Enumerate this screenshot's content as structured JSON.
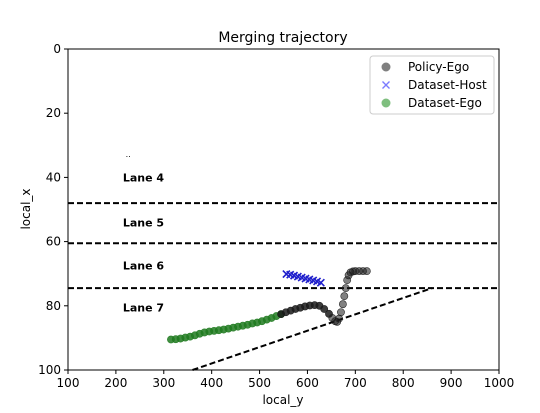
{
  "chart_data": {
    "type": "scatter",
    "title": "Merging trajectory",
    "xlabel": "local_y",
    "ylabel": "local_x",
    "xlim": [
      100,
      1000
    ],
    "ylim": [
      0,
      100
    ],
    "y_inverted": true,
    "xticks": [
      100,
      200,
      300,
      400,
      500,
      600,
      700,
      800,
      900,
      1000
    ],
    "yticks": [
      0,
      20,
      40,
      60,
      80,
      100
    ],
    "grid": false,
    "legend_position": "top-right",
    "legend": [
      {
        "label": "Policy-Ego",
        "marker": "circle",
        "color": "#808080"
      },
      {
        "label": "Dataset-Host",
        "marker": "x",
        "color": "#7b7bff"
      },
      {
        "label": "Dataset-Ego",
        "marker": "circle",
        "color": "#7fbf7f"
      }
    ],
    "lane_lines": [
      {
        "y": 48
      },
      {
        "y": 60.5
      },
      {
        "y": 74.5
      }
    ],
    "merge_line": {
      "points": [
        [
          360,
          100
        ],
        [
          860,
          74.5
        ]
      ]
    },
    "lane_labels": [
      {
        "text": "Lane 4",
        "x": 200,
        "y": 40
      },
      {
        "text": "Lane 5",
        "x": 200,
        "y": 54
      },
      {
        "text": "Lane 6",
        "x": 200,
        "y": 67.5
      },
      {
        "text": "Lane 7",
        "x": 200,
        "y": 80.5
      }
    ],
    "stray_mark": {
      "text": "..",
      "x": 210,
      "y": 33
    },
    "series": [
      {
        "name": "Dataset-Ego",
        "marker": "circle",
        "color": "#1f7a1f",
        "x": [
          315,
          325,
          335,
          345,
          355,
          365,
          375,
          385,
          395,
          405,
          415,
          425,
          435,
          445,
          455,
          465,
          475,
          485,
          495,
          505,
          515,
          525,
          535,
          545
        ],
        "y": [
          90.5,
          90.4,
          90.2,
          89.9,
          89.6,
          89.2,
          88.7,
          88.3,
          88.0,
          87.8,
          87.6,
          87.4,
          87.1,
          86.8,
          86.5,
          86.2,
          85.9,
          85.5,
          85.2,
          84.8,
          84.3,
          83.8,
          83.2,
          82.6
        ]
      },
      {
        "name": "Policy-Ego",
        "marker": "circle",
        "color": "#1a1a1a",
        "x": [
          545,
          555,
          565,
          575,
          585,
          595,
          605,
          615,
          625,
          635,
          645,
          652,
          658,
          662,
          666,
          670,
          674,
          677,
          680,
          683,
          686,
          690,
          695,
          700,
          708,
          716,
          724
        ],
        "y": [
          82.6,
          82.0,
          81.5,
          81.0,
          80.6,
          80.2,
          79.9,
          79.8,
          80.0,
          81.0,
          82.5,
          83.8,
          84.8,
          85.0,
          84.0,
          82.0,
          79.5,
          77.0,
          74.5,
          72.0,
          70.5,
          69.6,
          69.3,
          69.2,
          69.2,
          69.2,
          69.2
        ]
      },
      {
        "name": "Dataset-Host",
        "marker": "x",
        "color": "#1f1fcc",
        "x": [
          556,
          564,
          572,
          580,
          588,
          596,
          604,
          612,
          620,
          628
        ],
        "y": [
          70.1,
          70.3,
          70.6,
          70.9,
          71.2,
          71.5,
          71.8,
          72.1,
          72.4,
          72.8
        ]
      }
    ]
  }
}
